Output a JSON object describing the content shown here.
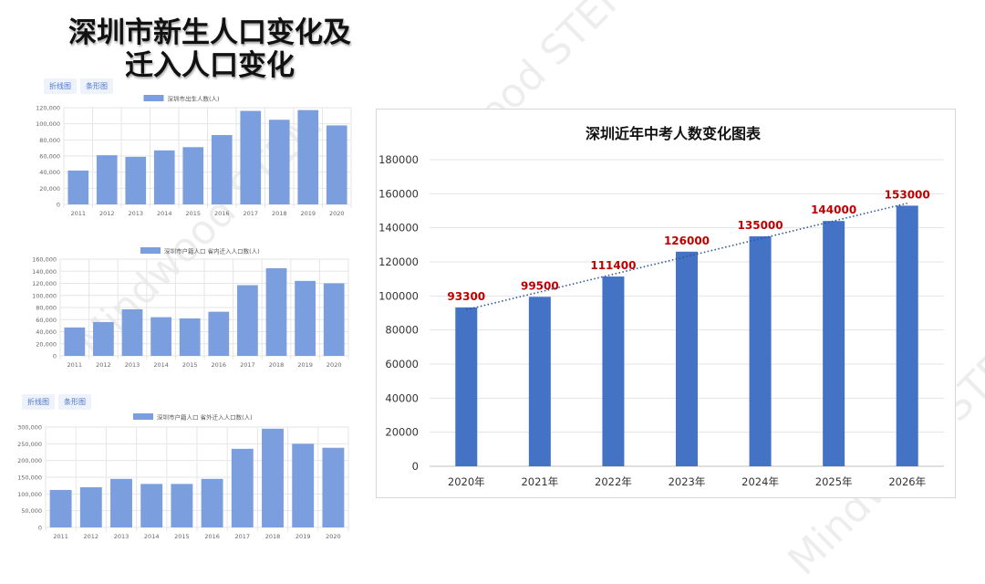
{
  "title": {
    "line1": "深圳市新生人口变化及",
    "line2": "迁入人口变化"
  },
  "tabs1": [
    "折线图",
    "条形图"
  ],
  "tabs3": [
    "折线图",
    "条形图"
  ],
  "watermark": "Mindwood STEM",
  "chart_data": [
    {
      "type": "bar",
      "title": "",
      "legend": "深圳市出生人数(人)",
      "legend_placement": "top-center",
      "categories": [
        "2011",
        "2012",
        "2013",
        "2014",
        "2015",
        "2016",
        "2017",
        "2018",
        "2019",
        "2020"
      ],
      "series": [
        {
          "name": "深圳市出生人数(人)",
          "values": [
            42000,
            61000,
            59000,
            67000,
            71000,
            86000,
            116000,
            105000,
            117000,
            98000
          ]
        }
      ],
      "ylim": [
        0,
        120000
      ],
      "yticks": [
        "0",
        "20,000",
        "40,000",
        "60,000",
        "80,000",
        "100,000",
        "120,000"
      ],
      "grid": true,
      "color": "#7b9fde"
    },
    {
      "type": "bar",
      "title": "",
      "legend": "深圳市户籍人口 省内迁入人口数(人)",
      "legend_placement": "top-center",
      "categories": [
        "2011",
        "2012",
        "2013",
        "2014",
        "2015",
        "2016",
        "2017",
        "2018",
        "2019",
        "2020"
      ],
      "series": [
        {
          "name": "深圳市户籍人口 省内迁入人口数(人)",
          "values": [
            47000,
            56000,
            77000,
            64000,
            62000,
            73000,
            117000,
            145000,
            124000,
            120000
          ]
        }
      ],
      "ylim": [
        0,
        160000
      ],
      "yticks": [
        "0",
        "20,000",
        "40,000",
        "60,000",
        "80,000",
        "100,000",
        "120,000",
        "140,000",
        "160,000"
      ],
      "grid": true,
      "color": "#7b9fde"
    },
    {
      "type": "bar",
      "title": "",
      "legend": "深圳市户籍人口 省外迁入人口数(人)",
      "legend_placement": "top-center",
      "categories": [
        "2011",
        "2012",
        "2013",
        "2014",
        "2015",
        "2016",
        "2017",
        "2018",
        "2019",
        "2020"
      ],
      "series": [
        {
          "name": "深圳市户籍人口 省外迁入人口数(人)",
          "values": [
            112000,
            120000,
            145000,
            130000,
            130000,
            145000,
            235000,
            295000,
            250000,
            238000
          ]
        }
      ],
      "ylim": [
        0,
        300000
      ],
      "yticks": [
        "0",
        "50,000",
        "100,000",
        "150,000",
        "200,000",
        "250,000",
        "300,000"
      ],
      "grid": true,
      "color": "#7b9fde"
    },
    {
      "type": "bar",
      "title": "深圳近年中考人数变化图表",
      "categories": [
        "2020年",
        "2021年",
        "2022年",
        "2023年",
        "2024年",
        "2025年",
        "2026年"
      ],
      "series": [
        {
          "name": "",
          "values": [
            93300,
            99500,
            111400,
            126000,
            135000,
            144000,
            153000
          ]
        }
      ],
      "data_labels": [
        "93300",
        "99500",
        "111400",
        "126000",
        "135000",
        "144000",
        "153000"
      ],
      "ylim": [
        0,
        180000
      ],
      "yticks": [
        "0",
        "20000",
        "40000",
        "60000",
        "80000",
        "100000",
        "120000",
        "140000",
        "160000",
        "180000"
      ],
      "trendline": "linear dotted",
      "grid": true,
      "color": "#4472c4",
      "label_color": "#c00000"
    }
  ]
}
